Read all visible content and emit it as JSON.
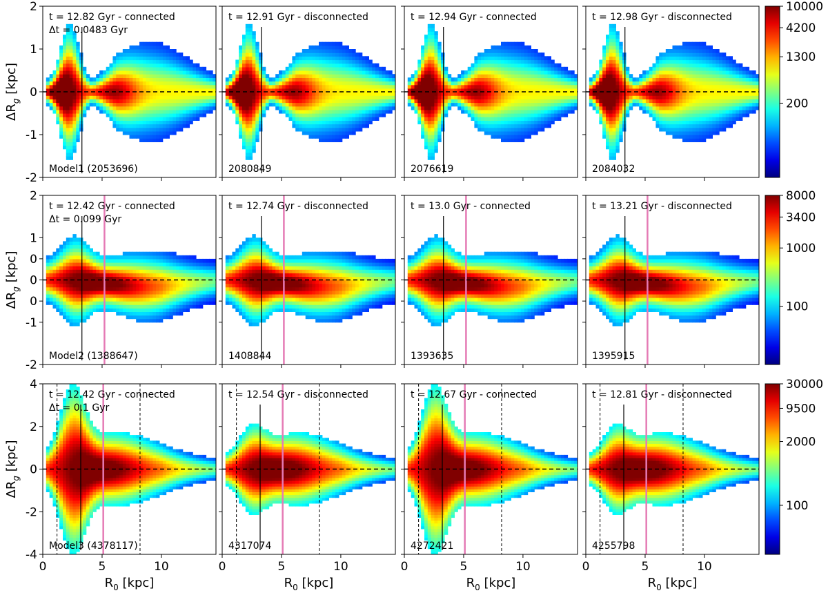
{
  "chart_data": {
    "type": "heatmap",
    "x_axis": {
      "label": "R",
      "label_sub": "0",
      "unit": "[kpc]",
      "range": [
        0,
        14.6
      ],
      "ticks": [
        0,
        5,
        10
      ]
    },
    "y_label": {
      "prefix": "ΔR",
      "sub": "g",
      "unit": "[kpc]"
    },
    "colormap": "jet",
    "rows": [
      {
        "model": "Model1",
        "y_range": [
          -2,
          2
        ],
        "y_ticks": [
          -2,
          -1,
          0,
          1,
          2
        ],
        "y_tick_labels": [
          "-2",
          "-1",
          "0",
          "1",
          "2"
        ],
        "colorbar_range": [
          10,
          10000
        ],
        "colorbar_ticks": [
          200,
          1300,
          4200,
          10000
        ],
        "colorbar_tick_labels": [
          "200",
          "1300",
          "4200",
          "10000"
        ],
        "reference_lines": {
          "solid": 3.3,
          "pink": null,
          "dashed": []
        },
        "panels": [
          {
            "title": "t = 12.82 Gyr - connected",
            "dt": "Δt = 0.0483 Gyr",
            "count": "Model1 (2053696)"
          },
          {
            "title": "t = 12.91 Gyr - disconnected",
            "dt": "",
            "count": "2080849"
          },
          {
            "title": "t = 12.94 Gyr - connected",
            "dt": "",
            "count": "2076619"
          },
          {
            "title": "t = 12.98 Gyr - disconnected",
            "dt": "",
            "count": "2084032"
          }
        ]
      },
      {
        "model": "Model2",
        "y_range": [
          -2,
          2
        ],
        "y_ticks": [
          -2,
          -1,
          -0.5,
          0,
          0.5,
          1,
          2
        ],
        "y_tick_labels": [
          "-2",
          "-1",
          "0",
          "0",
          "0",
          "1",
          "2"
        ],
        "colorbar_range": [
          10,
          8000
        ],
        "colorbar_ticks": [
          100,
          1000,
          3400,
          8000
        ],
        "colorbar_tick_labels": [
          "100",
          "1000",
          "3400",
          "8000"
        ],
        "reference_lines": {
          "solid": 3.3,
          "pink": 5.2,
          "dashed": []
        },
        "panels": [
          {
            "title": "t = 12.42 Gyr - connected",
            "dt": "Δt = 0.099 Gyr",
            "count": "Model2 (1388647)"
          },
          {
            "title": "t = 12.74 Gyr - disconnected",
            "dt": "",
            "count": "1408844"
          },
          {
            "title": "t = 13.0 Gyr - connected",
            "dt": "",
            "count": "1393635"
          },
          {
            "title": "t = 13.21 Gyr - disconnected",
            "dt": "",
            "count": "1395915"
          }
        ]
      },
      {
        "model": "Model3",
        "y_range": [
          -4,
          4
        ],
        "y_ticks": [
          -4,
          -2,
          0,
          2,
          4
        ],
        "y_tick_labels": [
          "-4",
          "-2",
          "0",
          "2",
          "4"
        ],
        "colorbar_range": [
          10,
          30000
        ],
        "colorbar_ticks": [
          100,
          2000,
          9500,
          30000
        ],
        "colorbar_tick_labels": [
          "100",
          "2000",
          "9500",
          "30000"
        ],
        "reference_lines": {
          "solid": 3.2,
          "pink": 5.1,
          "dashed": [
            1.2,
            8.2
          ]
        },
        "panels": [
          {
            "title": "t = 12.42 Gyr - connected",
            "dt": "Δt = 0.1 Gyr",
            "count": "Model3 (4378117)"
          },
          {
            "title": "t = 12.54 Gyr - disconnected",
            "dt": "",
            "count": "4317074"
          },
          {
            "title": "t = 12.67 Gyr - connected",
            "dt": "",
            "count": "4272421"
          },
          {
            "title": "t = 12.81 Gyr - disconnected",
            "dt": "",
            "count": "4255798"
          }
        ]
      }
    ]
  }
}
